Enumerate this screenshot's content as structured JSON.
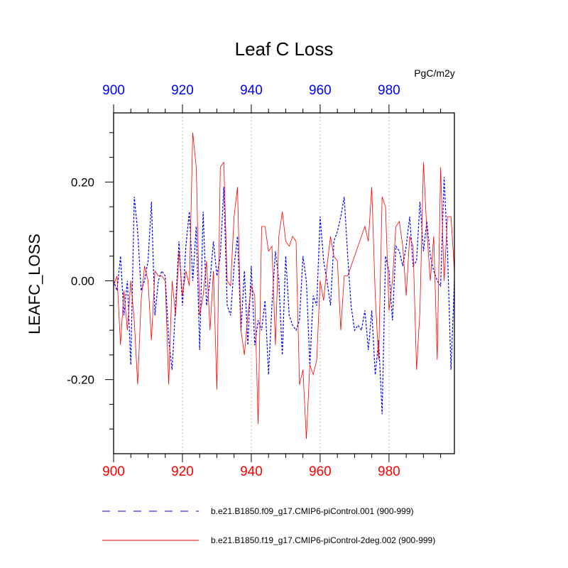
{
  "chart_data": {
    "type": "line",
    "title": "Leaf C Loss",
    "units": "PgC/m2y",
    "ylabel": "LEAFC_LOSS",
    "xlim": [
      900,
      999
    ],
    "ylim": [
      -0.35,
      0.34
    ],
    "x_ticks": [
      "900",
      "920",
      "940",
      "960",
      "980"
    ],
    "x_tick_values": [
      900,
      920,
      940,
      960,
      980
    ],
    "y_ticks": [
      "0.20",
      "0.00",
      "-0.20"
    ],
    "y_tick_values": [
      0.2,
      0.0,
      -0.2
    ],
    "grid": "vertical dotted at major x ticks",
    "x": [
      900,
      901,
      902,
      903,
      904,
      905,
      906,
      907,
      908,
      909,
      910,
      911,
      912,
      913,
      914,
      915,
      916,
      917,
      918,
      919,
      920,
      921,
      922,
      923,
      924,
      925,
      926,
      927,
      928,
      929,
      930,
      931,
      932,
      933,
      934,
      935,
      936,
      937,
      938,
      939,
      940,
      941,
      942,
      943,
      944,
      945,
      946,
      947,
      948,
      949,
      950,
      951,
      952,
      953,
      954,
      955,
      956,
      957,
      958,
      959,
      960,
      961,
      962,
      963,
      964,
      965,
      966,
      967,
      968,
      969,
      970,
      971,
      972,
      973,
      974,
      975,
      976,
      977,
      978,
      979,
      980,
      981,
      982,
      983,
      984,
      985,
      986,
      987,
      988,
      989,
      990,
      991,
      992,
      993,
      994,
      995,
      996,
      997,
      998,
      999
    ],
    "series": [
      {
        "name": "b.e21.B1850.f09_g17.CMIP6-piControl.001 (900-999)",
        "color": "#0000ff",
        "style": "dashed",
        "values": [
          0.0,
          -0.02,
          0.05,
          -0.07,
          0.0,
          -0.17,
          0.17,
          0.1,
          -0.02,
          0.0,
          0.04,
          0.16,
          -0.07,
          0.0,
          0.02,
          0.01,
          -0.12,
          -0.18,
          -0.05,
          0.08,
          -0.05,
          0.07,
          0.14,
          0.0,
          0.11,
          -0.14,
          0.14,
          -0.05,
          0.0,
          0.08,
          0.01,
          0.05,
          0.19,
          -0.05,
          -0.07,
          0.03,
          0.09,
          -0.1,
          0.02,
          -0.13,
          0.03,
          -0.13,
          -0.08,
          -0.1,
          -0.04,
          -0.19,
          -0.05,
          0.06,
          0.0,
          -0.15,
          0.05,
          -0.07,
          -0.09,
          -0.1,
          -0.08,
          0.05,
          0.0,
          -0.17,
          -0.03,
          -0.05,
          0.13,
          0.04,
          0.0,
          -0.05,
          0.08,
          0.1,
          0.13,
          0.17,
          0.05,
          -0.05,
          -0.1,
          -0.09,
          -0.1,
          -0.06,
          -0.14,
          -0.06,
          -0.19,
          -0.12,
          -0.27,
          0.05,
          0.02,
          -0.08,
          0.07,
          0.06,
          0.03,
          0.07,
          0.13,
          0.03,
          0.04,
          0.16,
          0.06,
          0.12,
          0.05,
          0.02,
          0.0,
          -0.01,
          0.21,
          0.06,
          -0.18,
          0.0
        ]
      },
      {
        "name": "b.e21.B1850.f19_g17.CMIP6-piControl-2deg.002 (900-999)",
        "color": "#ff0000",
        "style": "solid",
        "values": [
          -0.01,
          0.01,
          -0.13,
          -0.02,
          -0.1,
          0.0,
          -0.08,
          -0.21,
          -0.04,
          0.03,
          0.0,
          -0.12,
          0.02,
          0.01,
          0.01,
          0.0,
          -0.21,
          0.0,
          -0.07,
          0.06,
          -0.03,
          0.02,
          -0.01,
          0.3,
          0.23,
          -0.07,
          -0.03,
          0.04,
          -0.1,
          0.02,
          -0.22,
          0.23,
          0.24,
          0.0,
          -0.01,
          0.13,
          0.19,
          -0.1,
          -0.15,
          -0.07,
          -0.01,
          -0.03,
          -0.29,
          0.11,
          0.11,
          0.06,
          0.07,
          -0.13,
          0.09,
          0.14,
          0.08,
          0.07,
          0.09,
          0.08,
          -0.21,
          -0.18,
          -0.32,
          -0.17,
          -0.19,
          -0.16,
          0.0,
          -0.04,
          0.03,
          0.09,
          0.05,
          0.04,
          -0.1,
          0.01,
          0.01,
          0.03,
          0.05,
          0.07,
          0.09,
          0.11,
          0.08,
          0.19,
          -0.03,
          -0.16,
          0.17,
          0.15,
          -0.06,
          0.0,
          0.11,
          0.12,
          0.07,
          -0.03,
          0.09,
          0.07,
          -0.18,
          -0.06,
          0.24,
          0.1,
          0.0,
          0.09,
          -0.16,
          0.23,
          0.0,
          0.13,
          0.13,
          0.02
        ]
      }
    ]
  }
}
